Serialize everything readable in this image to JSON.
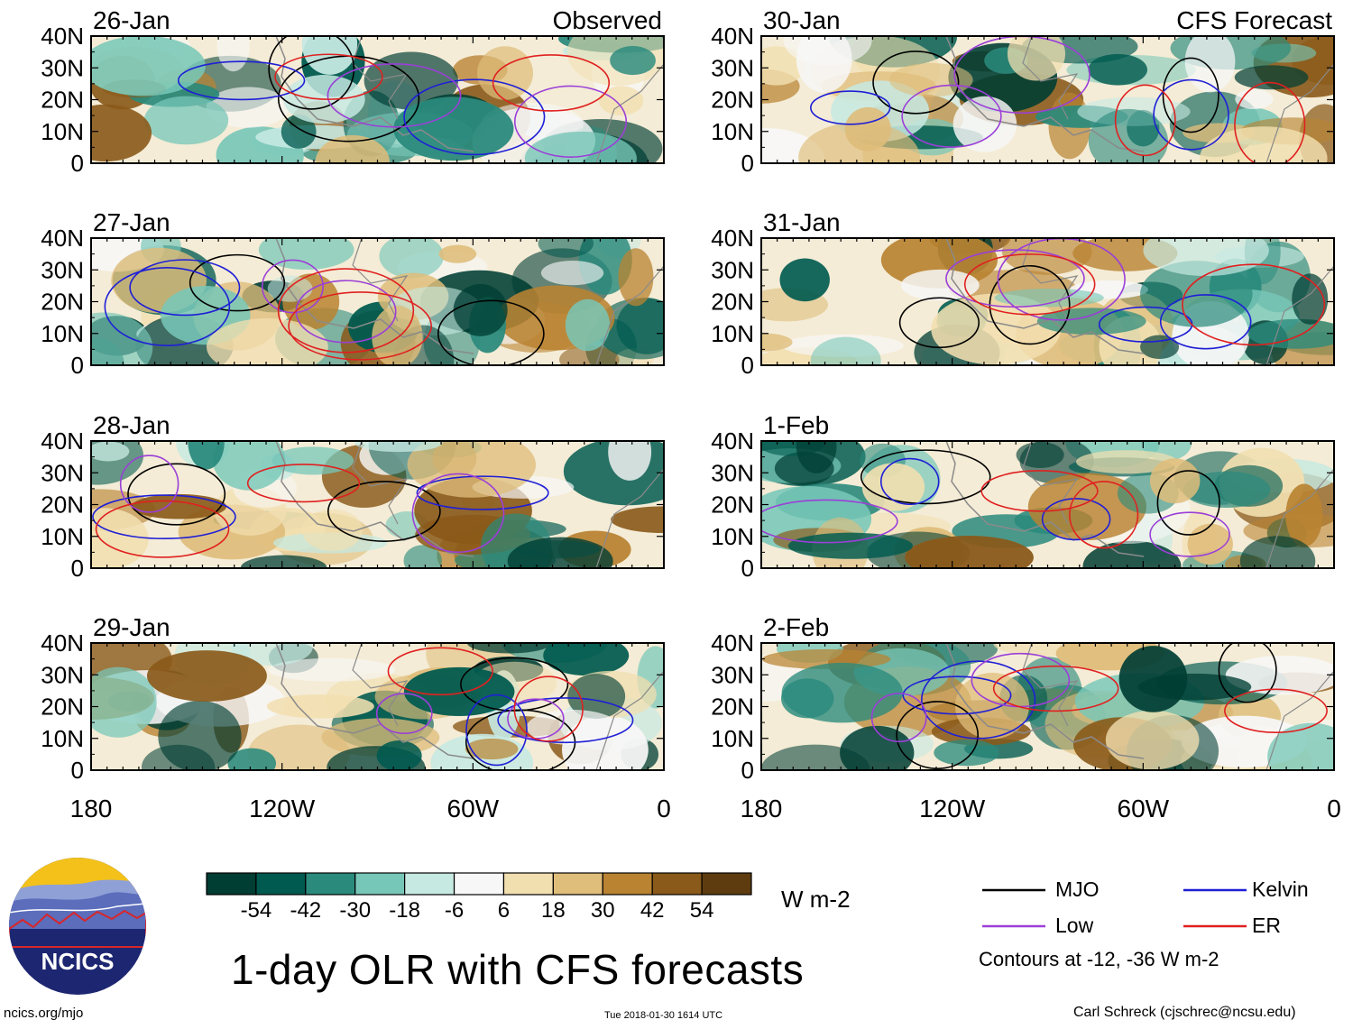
{
  "chart_data": [
    {
      "type": "heatmap",
      "panel": "observed",
      "date": "26-Jan",
      "corner_label": "Observed"
    },
    {
      "type": "heatmap",
      "panel": "observed",
      "date": "27-Jan"
    },
    {
      "type": "heatmap",
      "panel": "observed",
      "date": "28-Jan"
    },
    {
      "type": "heatmap",
      "panel": "observed",
      "date": "29-Jan"
    },
    {
      "type": "heatmap",
      "panel": "forecast",
      "date": "30-Jan",
      "corner_label": "CFS Forecast"
    },
    {
      "type": "heatmap",
      "panel": "forecast",
      "date": "31-Jan"
    },
    {
      "type": "heatmap",
      "panel": "forecast",
      "date": "1-Feb"
    },
    {
      "type": "heatmap",
      "panel": "forecast",
      "date": "2-Feb"
    }
  ],
  "axes": {
    "y_ticks": [
      "40N",
      "30N",
      "20N",
      "10N",
      "0"
    ],
    "x_ticks": [
      "180",
      "120W",
      "60W",
      "0"
    ],
    "lat_range": [
      0,
      40
    ],
    "lon_range": [
      -180,
      0
    ]
  },
  "colorbar": {
    "labels": [
      "-54",
      "-42",
      "-30",
      "-18",
      "-6",
      "6",
      "18",
      "30",
      "42",
      "54"
    ],
    "colors": [
      "#003d33",
      "#005a4f",
      "#2a8a7c",
      "#77c7b8",
      "#c6e9e2",
      "#f7f7f7",
      "#f2dfb0",
      "#dfbd7a",
      "#b98332",
      "#8a5a1a",
      "#5e3c10"
    ],
    "units": "W m-2"
  },
  "legend": {
    "items": [
      {
        "label": "MJO",
        "color": "#000000"
      },
      {
        "label": "Kelvin",
        "color": "#1f1fd6"
      },
      {
        "label": "Low",
        "color": "#9b3fd8"
      },
      {
        "label": "ER",
        "color": "#e02020"
      }
    ],
    "note": "Contours at -12, -36 W m-2"
  },
  "title": "1-day OLR with CFS forecasts",
  "logo_text": "NCICS",
  "footer": {
    "site": "ncics.org/mjo",
    "timestamp": "Tue 2018-01-30 1614 UTC",
    "author": "Carl Schreck (cjschrec@ncsu.edu)"
  }
}
